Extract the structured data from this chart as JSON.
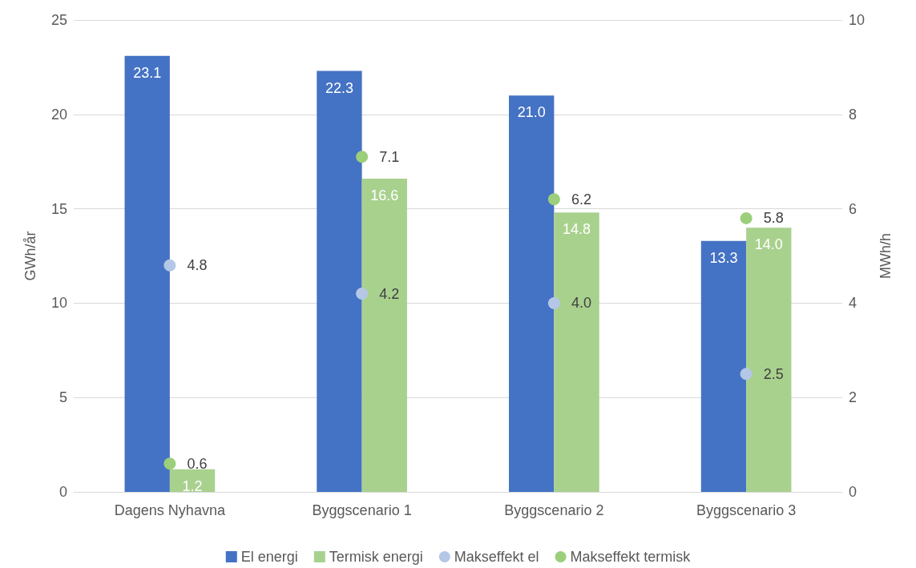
{
  "chart_data": {
    "type": "bar",
    "categories": [
      "Dagens Nyhavna",
      "Byggscenario 1",
      "Byggscenario 2",
      "Byggscenario 3"
    ],
    "ylabel": "GWh/år",
    "y2label": "MWh/h",
    "ylim": [
      0,
      25
    ],
    "yticks": [
      0,
      5,
      10,
      15,
      20,
      25
    ],
    "y2lim": [
      0,
      10
    ],
    "y2ticks": [
      0,
      2,
      4,
      6,
      8,
      10
    ],
    "grid": "y",
    "legend": "bottom",
    "marker": "circle",
    "series": [
      {
        "name": "El energi",
        "type": "bar",
        "color": "#4472c4",
        "values": [
          23.1,
          22.3,
          21.0,
          13.3
        ],
        "value_labels": [
          "23.1",
          "22.3",
          "21.0",
          "13.3"
        ]
      },
      {
        "name": "Termisk energi",
        "type": "bar",
        "color": "#a9d18e",
        "values": [
          1.2,
          16.6,
          14.8,
          14.0
        ],
        "value_labels": [
          "1.2",
          "16.6",
          "14.8",
          "14.0"
        ]
      },
      {
        "name": "Makseffekt el",
        "type": "scatter",
        "axis": "y2",
        "color": "#b4c7e7",
        "x": [
          "Dagens Nyhavna",
          "Byggscenario 1",
          "Byggscenario 2",
          "Byggscenario 3"
        ],
        "values": [
          4.8,
          4.2,
          4.0,
          2.5
        ],
        "value_labels": [
          "4.8",
          "4.2",
          "4.0",
          "2.5"
        ]
      },
      {
        "name": "Makseffekt termisk",
        "type": "scatter",
        "axis": "y2",
        "color": "#9bcf7c",
        "x": [
          "Dagens Nyhavna",
          "Byggscenario 1",
          "Byggscenario 2",
          "Byggscenario 3"
        ],
        "values": [
          0.6,
          7.1,
          6.2,
          5.8
        ],
        "value_labels": [
          "0.6",
          "7.1",
          "6.2",
          "5.8"
        ]
      }
    ]
  }
}
